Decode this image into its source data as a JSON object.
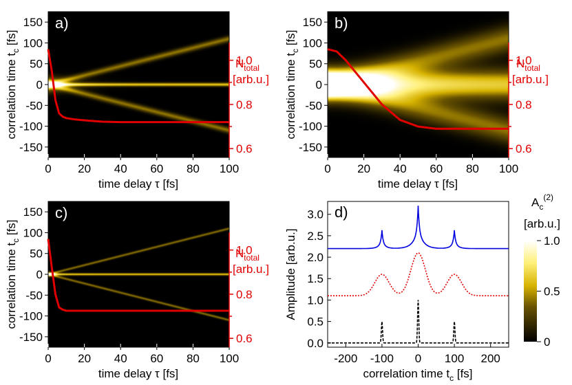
{
  "chart_data": [
    {
      "type": "heatmap",
      "panel_label": "a)",
      "xlabel": "time delay τ [fs]",
      "ylabel": "correlation time t",
      "ylabel_sub": "c",
      "ylabel_unit": " [fs]",
      "xlim": [
        0,
        100
      ],
      "ylim": [
        -175,
        175
      ],
      "xticks": [
        0,
        20,
        40,
        60,
        80,
        100
      ],
      "yticks": [
        150,
        100,
        50,
        0,
        -50,
        -100,
        -150
      ],
      "features": {
        "center_band_width_fs": 3,
        "side_band_width_fs": 5,
        "blob_width_fs": 12,
        "blob_decay_fs": 10
      },
      "right_axis": {
        "label_main": "N",
        "label_sub": "total",
        "label_unit": "[arb.u.]",
        "ticks": [
          1.0,
          0.8,
          0.6
        ],
        "ylim": [
          0.56,
          1.22
        ],
        "color": "#e10000"
      },
      "n_total_curve": {
        "x": [
          0,
          2,
          4,
          6,
          8,
          10,
          15,
          20,
          30,
          40,
          60,
          80,
          100
        ],
        "y": [
          1.05,
          0.95,
          0.82,
          0.76,
          0.745,
          0.738,
          0.732,
          0.728,
          0.722,
          0.72,
          0.72,
          0.72,
          0.72
        ]
      }
    },
    {
      "type": "heatmap",
      "panel_label": "b)",
      "xlabel": "time delay τ [fs]",
      "ylabel": "correlation time t",
      "ylabel_sub": "c",
      "ylabel_unit": " [fs]",
      "xlim": [
        0,
        100
      ],
      "ylim": [
        -175,
        175
      ],
      "xticks": [
        0,
        20,
        40,
        60,
        80,
        100
      ],
      "yticks": [
        150,
        100,
        50,
        0,
        -50,
        -100,
        -150
      ],
      "features": {
        "center_band_width_fs": 25,
        "side_band_width_fs": 22,
        "blob_width_fs": 20,
        "blob_decay_fs": 30
      },
      "right_axis": {
        "label_main": "N",
        "label_sub": "total",
        "label_unit": "[arb.u.]",
        "ticks": [
          1.0,
          0.8,
          0.6
        ],
        "ylim": [
          0.56,
          1.22
        ],
        "color": "#e10000"
      },
      "n_total_curve": {
        "x": [
          0,
          5,
          10,
          20,
          30,
          40,
          50,
          60,
          70,
          80,
          100
        ],
        "y": [
          1.05,
          1.04,
          1.0,
          0.9,
          0.8,
          0.73,
          0.7,
          0.69,
          0.69,
          0.69,
          0.69
        ]
      }
    },
    {
      "type": "heatmap",
      "panel_label": "c)",
      "xlabel": "time delay τ [fs]",
      "ylabel": "correlation time t",
      "ylabel_sub": "c",
      "ylabel_unit": " [fs]",
      "xlim": [
        0,
        100
      ],
      "ylim": [
        -175,
        175
      ],
      "xticks": [
        0,
        20,
        40,
        60,
        80,
        100
      ],
      "yticks": [
        150,
        100,
        50,
        0,
        -50,
        -100,
        -150
      ],
      "features": {
        "center_band_width_fs": 2,
        "side_band_width_fs": 2,
        "blob_width_fs": 4,
        "blob_decay_fs": 3
      },
      "right_axis": {
        "label_main": "N",
        "label_sub": "total",
        "label_unit": "[arb.u.]",
        "ticks": [
          1.0,
          0.8,
          0.6
        ],
        "ylim": [
          0.56,
          1.22
        ],
        "color": "#e10000"
      },
      "n_total_curve": {
        "x": [
          0,
          2,
          4,
          6,
          8,
          10,
          20,
          40,
          60,
          80,
          100
        ],
        "y": [
          1.05,
          0.92,
          0.8,
          0.74,
          0.73,
          0.725,
          0.725,
          0.725,
          0.725,
          0.725,
          0.725
        ]
      }
    },
    {
      "type": "line",
      "panel_label": "d)",
      "xlabel": "correlation time t",
      "xlabel_sub": "c",
      "xlabel_unit": " [fs]",
      "ylabel": "Amplitude [arb.u.]",
      "xlim": [
        -250,
        250
      ],
      "ylim": [
        -0.1,
        3.3
      ],
      "xticks": [
        -200,
        -100,
        0,
        100,
        200
      ],
      "yticks": [
        0.0,
        0.5,
        1.0,
        1.5,
        2.0,
        2.5,
        3.0
      ],
      "series": [
        {
          "color": "#0000e0",
          "style": "solid",
          "offset": 2.2,
          "peaks": [
            {
              "x": -100,
              "sharp": 0.28,
              "broad": 0.15,
              "sharp_w": 3,
              "broad_w": 10
            },
            {
              "x": 0,
              "sharp": 0.55,
              "broad": 0.45,
              "sharp_w": 3,
              "broad_w": 14
            },
            {
              "x": 100,
              "sharp": 0.28,
              "broad": 0.15,
              "sharp_w": 3,
              "broad_w": 10
            }
          ]
        },
        {
          "color": "#e10000",
          "style": "dotted",
          "offset": 1.1,
          "peaks": [
            {
              "x": -100,
              "gauss": 0.5,
              "w": 20
            },
            {
              "x": 0,
              "gauss": 1.0,
              "w": 20
            },
            {
              "x": 100,
              "gauss": 0.5,
              "w": 20
            }
          ]
        },
        {
          "color": "#000000",
          "style": "dashed",
          "offset": 0.0,
          "peaks": [
            {
              "x": -100,
              "gauss": 0.5,
              "w": 1.6
            },
            {
              "x": 0,
              "gauss": 1.0,
              "w": 1.6
            },
            {
              "x": 100,
              "gauss": 0.5,
              "w": 1.6
            }
          ]
        }
      ]
    }
  ],
  "colorbar": {
    "label_main": "A",
    "label_sub": "c",
    "label_sup": "(2)",
    "label_unit": "[arb.u.]",
    "ticks": [
      {
        "value": 1.0,
        "label": "1.0"
      },
      {
        "value": 0.5,
        "label": "0.5"
      },
      {
        "value": 0.0,
        "label": "0"
      }
    ]
  }
}
